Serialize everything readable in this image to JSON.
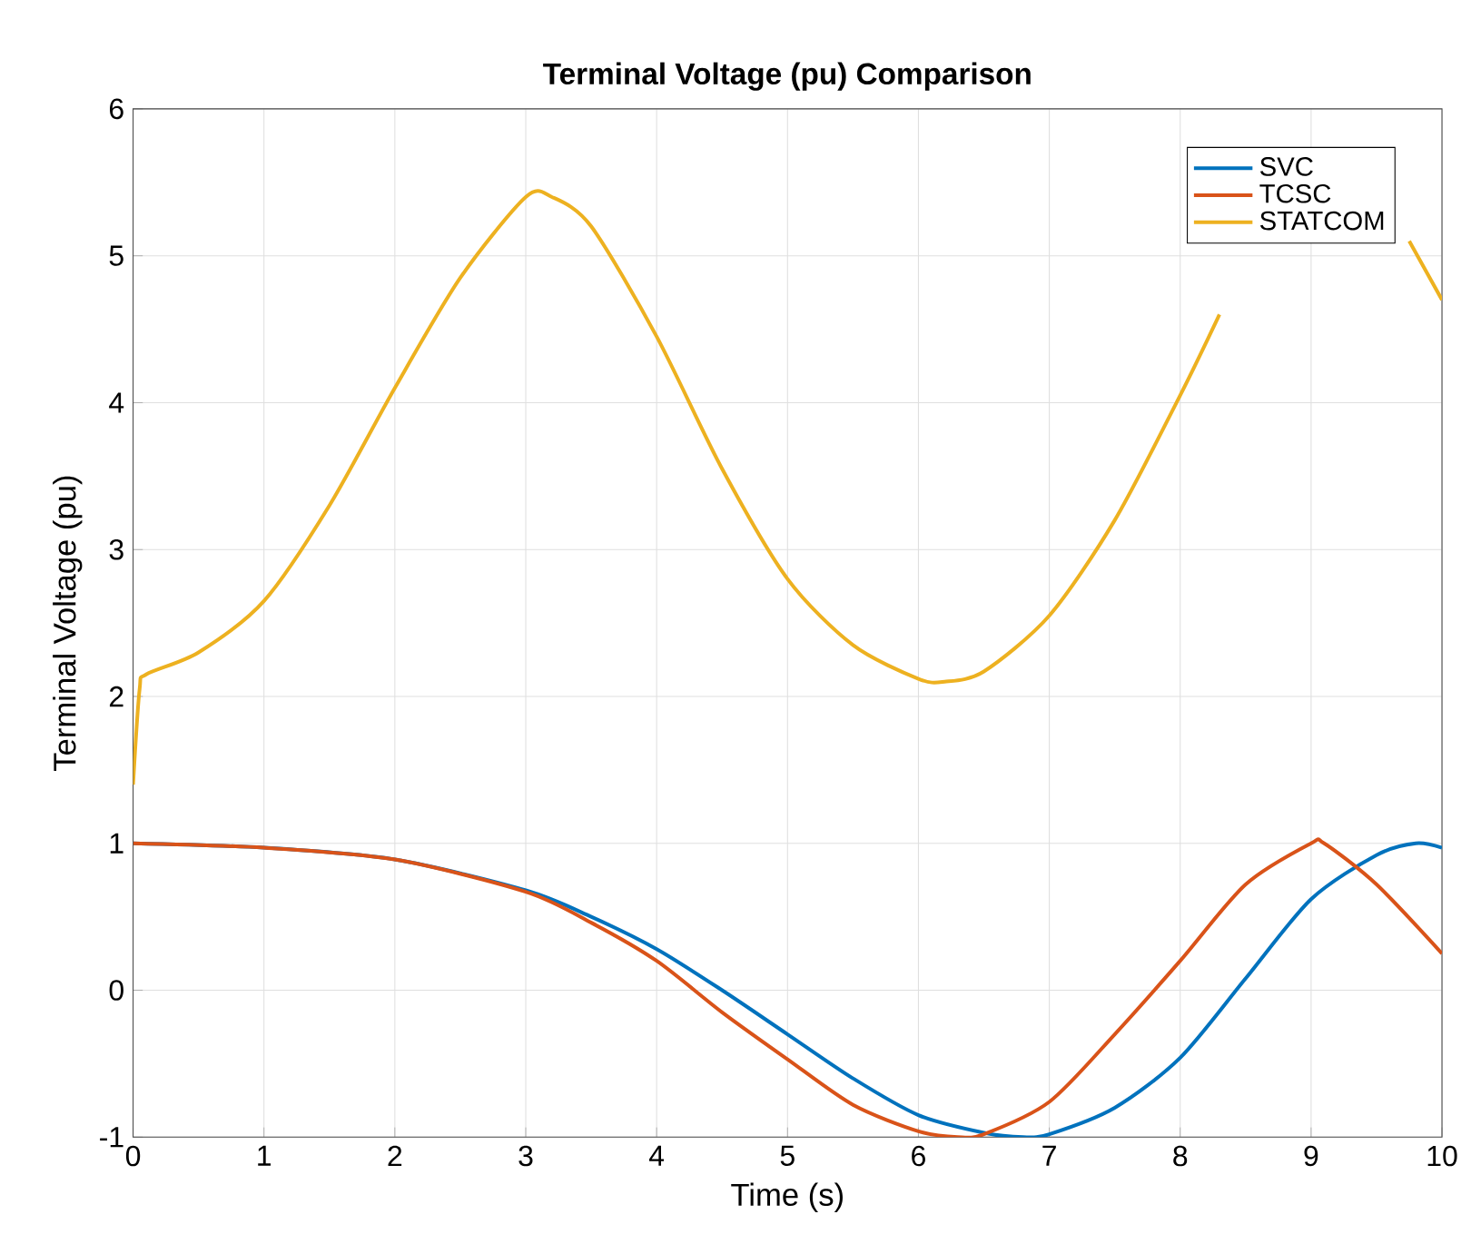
{
  "chart_data": {
    "type": "line",
    "title": "Terminal Voltage (pu) Comparison",
    "xlabel": "Time (s)",
    "ylabel": "Terminal Voltage (pu)",
    "xlim": [
      0,
      10
    ],
    "ylim": [
      -1,
      6
    ],
    "xticks": [
      0,
      1,
      2,
      3,
      4,
      5,
      6,
      7,
      8,
      9,
      10
    ],
    "yticks": [
      -1,
      0,
      1,
      2,
      3,
      4,
      5,
      6
    ],
    "grid": true,
    "legend": "top right",
    "series": [
      {
        "name": "SVC",
        "color": "#0072bd",
        "x": [
          0,
          1,
          2,
          3,
          3.5,
          4,
          4.5,
          5,
          5.5,
          6,
          6.5,
          6.8,
          7,
          7.5,
          8,
          8.5,
          9,
          9.5,
          9.8,
          10
        ],
        "values": [
          1,
          0.97,
          0.89,
          0.68,
          0.5,
          0.28,
          0.0,
          -0.3,
          -0.6,
          -0.85,
          -0.97,
          -1.0,
          -0.98,
          -0.8,
          -0.46,
          0.08,
          0.62,
          0.92,
          1.0,
          0.97
        ]
      },
      {
        "name": "TCSC",
        "color": "#d95319",
        "x": [
          0,
          1,
          2,
          3,
          3.5,
          4,
          4.5,
          5,
          5.5,
          6,
          6.3,
          6.5,
          7,
          7.5,
          8,
          8.5,
          9,
          9.1,
          9.5,
          10
        ],
        "values": [
          1,
          0.97,
          0.89,
          0.67,
          0.46,
          0.2,
          -0.15,
          -0.47,
          -0.78,
          -0.96,
          -1.0,
          -0.98,
          -0.76,
          -0.3,
          0.2,
          0.72,
          1.0,
          1.0,
          0.72,
          0.25
        ]
      },
      {
        "name": "STATCOM",
        "color": "#edb120",
        "x": [
          0,
          0.05,
          0.1,
          0.5,
          1,
          1.5,
          2,
          2.5,
          3,
          3.2,
          3.5,
          4,
          4.5,
          5,
          5.5,
          6,
          6.2,
          6.5,
          7,
          7.5,
          8,
          8.3,
          9,
          9.75,
          10
        ],
        "values": [
          1.4,
          2.05,
          2.15,
          2.3,
          2.65,
          3.3,
          4.1,
          4.85,
          5.4,
          5.4,
          5.2,
          4.45,
          3.55,
          2.8,
          2.35,
          2.12,
          2.1,
          2.17,
          2.55,
          3.2,
          4.05,
          4.6,
          null,
          5.1,
          4.7
        ]
      }
    ]
  }
}
